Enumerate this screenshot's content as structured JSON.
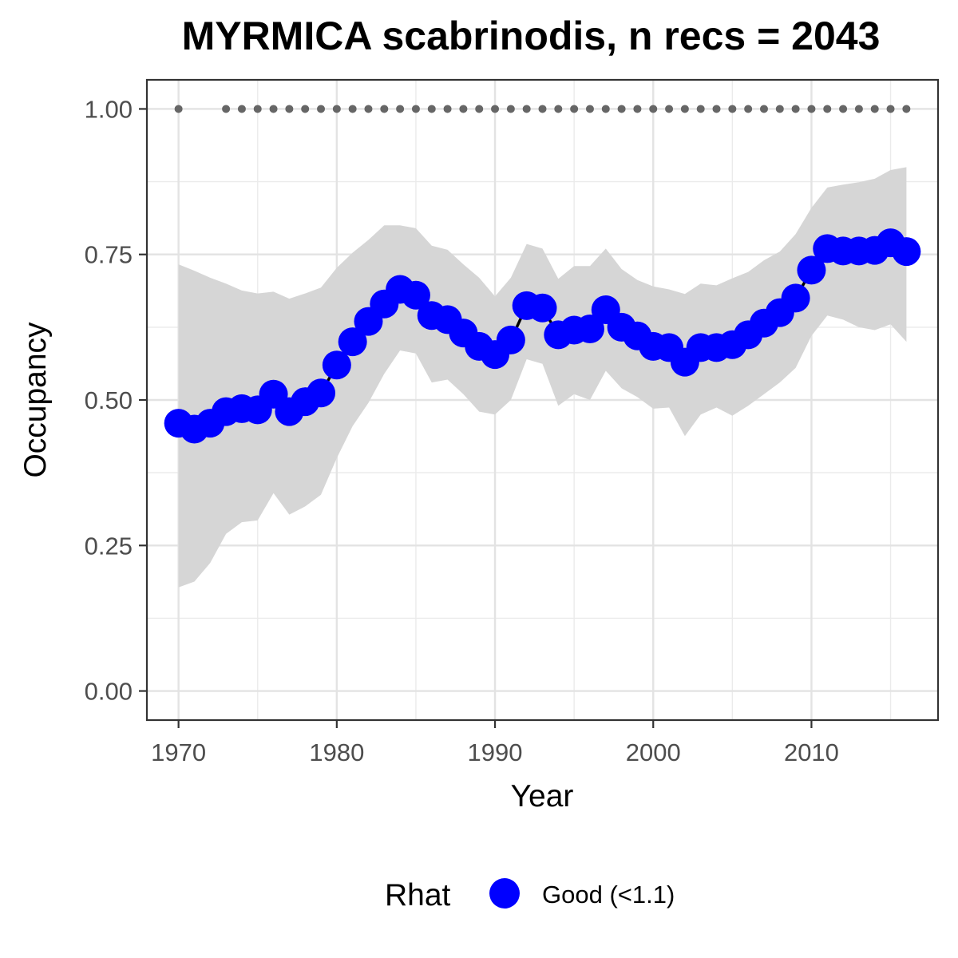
{
  "chart_data": {
    "type": "line",
    "title": "MYRMICA scabrinodis, n recs = 2043",
    "xlabel": "Year",
    "ylabel": "Occupancy",
    "xlim": [
      1968,
      2018
    ],
    "ylim": [
      -0.05,
      1.05
    ],
    "x_ticks": [
      "1970",
      "1980",
      "1990",
      "2000",
      "2010"
    ],
    "y_ticks": [
      "0.00",
      "0.25",
      "0.50",
      "0.75",
      "1.00"
    ],
    "grid": true,
    "legend": {
      "position": "bottom",
      "title": "Rhat",
      "entries": [
        "Good (<1.1)"
      ]
    },
    "colors": {
      "points": "#0000ff",
      "line": "#000000",
      "ribbon": "#d6d6d6",
      "record_dots": "#666666"
    },
    "years": [
      1970,
      1971,
      1972,
      1973,
      1974,
      1975,
      1976,
      1977,
      1978,
      1979,
      1980,
      1981,
      1982,
      1983,
      1984,
      1985,
      1986,
      1987,
      1988,
      1989,
      1990,
      1991,
      1992,
      1993,
      1994,
      1995,
      1996,
      1997,
      1998,
      1999,
      2000,
      2001,
      2002,
      2003,
      2004,
      2005,
      2006,
      2007,
      2008,
      2009,
      2010,
      2011,
      2012,
      2013,
      2014,
      2015,
      2016
    ],
    "occupancy": [
      0.46,
      0.45,
      0.46,
      0.48,
      0.485,
      0.483,
      0.51,
      0.48,
      0.497,
      0.512,
      0.56,
      0.6,
      0.635,
      0.665,
      0.69,
      0.68,
      0.645,
      0.638,
      0.615,
      0.592,
      0.578,
      0.603,
      0.662,
      0.658,
      0.612,
      0.62,
      0.622,
      0.655,
      0.625,
      0.61,
      0.592,
      0.59,
      0.565,
      0.59,
      0.59,
      0.595,
      0.612,
      0.632,
      0.65,
      0.675,
      0.723,
      0.76,
      0.756,
      0.756,
      0.757,
      0.77,
      0.755
    ],
    "lower": [
      0.178,
      0.188,
      0.22,
      0.27,
      0.29,
      0.293,
      0.34,
      0.303,
      0.317,
      0.337,
      0.4,
      0.455,
      0.495,
      0.545,
      0.585,
      0.58,
      0.53,
      0.535,
      0.51,
      0.48,
      0.475,
      0.5,
      0.57,
      0.562,
      0.49,
      0.51,
      0.5,
      0.55,
      0.52,
      0.505,
      0.485,
      0.487,
      0.438,
      0.475,
      0.487,
      0.473,
      0.49,
      0.51,
      0.53,
      0.555,
      0.61,
      0.645,
      0.638,
      0.625,
      0.62,
      0.63,
      0.6
    ],
    "upper": [
      0.733,
      0.722,
      0.71,
      0.7,
      0.688,
      0.683,
      0.686,
      0.674,
      0.683,
      0.693,
      0.727,
      0.753,
      0.775,
      0.8,
      0.8,
      0.795,
      0.765,
      0.758,
      0.733,
      0.71,
      0.678,
      0.71,
      0.768,
      0.76,
      0.708,
      0.73,
      0.73,
      0.76,
      0.725,
      0.706,
      0.695,
      0.69,
      0.682,
      0.7,
      0.697,
      0.709,
      0.72,
      0.74,
      0.755,
      0.785,
      0.83,
      0.865,
      0.87,
      0.874,
      0.88,
      0.895,
      0.9
    ],
    "record_years": [
      1970,
      1973,
      1974,
      1975,
      1976,
      1977,
      1978,
      1979,
      1980,
      1981,
      1982,
      1983,
      1984,
      1985,
      1986,
      1987,
      1988,
      1989,
      1990,
      1991,
      1992,
      1993,
      1994,
      1995,
      1996,
      1997,
      1998,
      1999,
      2000,
      2001,
      2002,
      2003,
      2004,
      2005,
      2006,
      2007,
      2008,
      2009,
      2010,
      2011,
      2012,
      2013,
      2014,
      2015,
      2016
    ],
    "record_level": 1.0
  }
}
